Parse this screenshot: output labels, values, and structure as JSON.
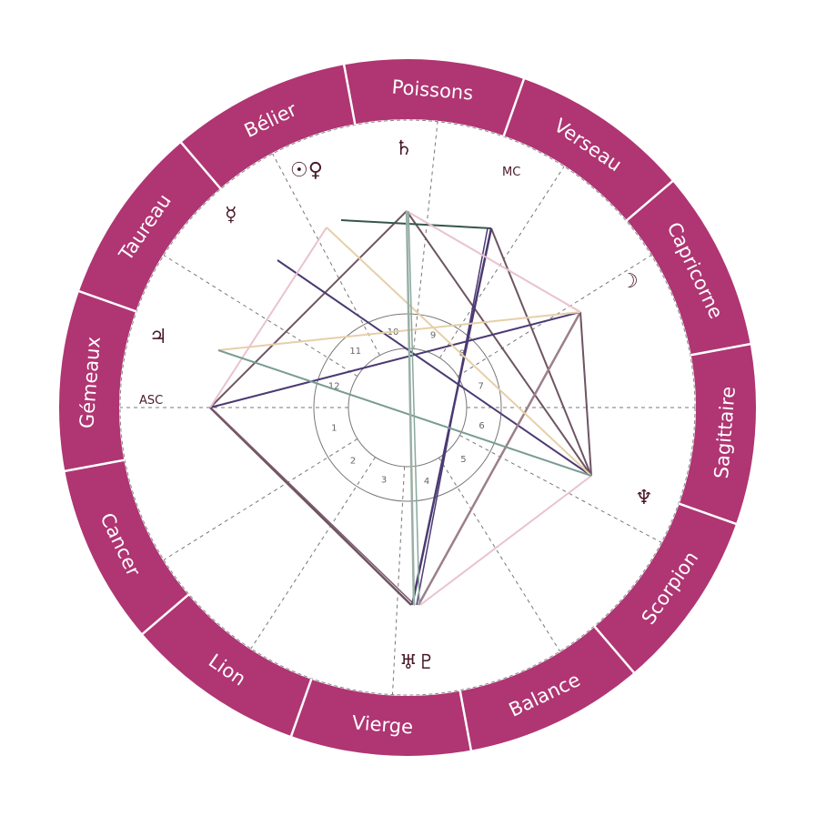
{
  "colors": {
    "zodiac_ring": "#b03573",
    "zodiac_text": "#ffffff",
    "glyph": "#4a1a2a",
    "cusp": "#777777"
  },
  "zodiac_signs": [
    "Poissons",
    "Verseau",
    "Capricorne",
    "Sagittaire",
    "Scorpion",
    "Balance",
    "Vierge",
    "Lion",
    "Cancer",
    "Gémeaux",
    "Taureau",
    "Bélier"
  ],
  "angles": {
    "asc": "ASC",
    "mc": "MC"
  },
  "planets": [
    {
      "name": "sun-venus",
      "glyph": "☉♀",
      "icon": "sun-venus-icon"
    },
    {
      "name": "saturn",
      "glyph": "♄",
      "icon": "saturn-icon"
    },
    {
      "name": "mercury",
      "glyph": "☿",
      "icon": "mercury-icon"
    },
    {
      "name": "moon",
      "glyph": "☽",
      "icon": "moon-icon"
    },
    {
      "name": "jupiter",
      "glyph": "♃",
      "icon": "jupiter-icon"
    },
    {
      "name": "neptune",
      "glyph": "♆",
      "icon": "neptune-icon"
    },
    {
      "name": "uranus-pluto",
      "glyph": "♅♇",
      "icon": "uranus-pluto-icon"
    }
  ],
  "house_numbers": [
    "1",
    "2",
    "3",
    "4",
    "5",
    "6",
    "7",
    "8",
    "9",
    "10",
    "11",
    "12"
  ],
  "aspect_colors": [
    "#4b3a72",
    "#6e5463",
    "#9ab0a4",
    "#e6cfa8",
    "#e9c3cf",
    "#35574a",
    "#9c7f8a",
    "#7a9b94"
  ]
}
